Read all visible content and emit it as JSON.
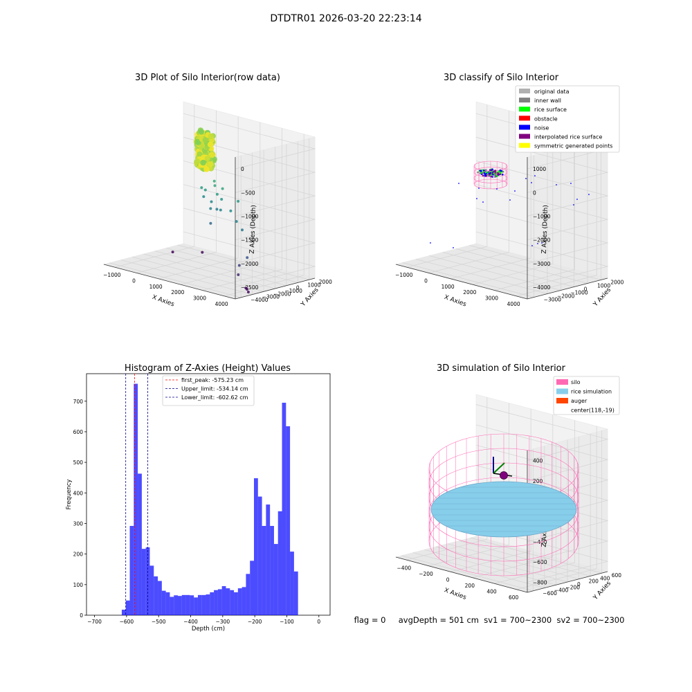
{
  "figure": {
    "suptitle": "DTDTR01 2026-03-20 22:23:14",
    "status_line": "flag = 0     avgDepth = 501 cm  sv1 = 700~2300  sv2 = 700~2300"
  },
  "chart_data": [
    {
      "type": "scatter",
      "title": "3D Plot of Silo Interior(row data)",
      "xlabel": "X Axies",
      "ylabel": "Y Axies",
      "zlabel": "Z Axies (Depth)",
      "x_ticks": [
        -1000,
        0,
        1000,
        2000,
        3000,
        4000
      ],
      "y_ticks": [
        2000,
        1000,
        0,
        -1000,
        -2000,
        -3000,
        -4000
      ],
      "z_ticks": [
        0,
        -500,
        -1000,
        -1500,
        -2000,
        -2500
      ],
      "xlim": [
        -1500,
        4500
      ],
      "ylim": [
        -4500,
        2500
      ],
      "zlim": [
        -3000,
        200
      ],
      "colormap": "viridis",
      "cluster": {
        "x_range": [
          400,
          1000
        ],
        "y_range": [
          -300,
          300
        ],
        "z_range": [
          -800,
          0
        ]
      },
      "points": [
        {
          "x": 1080,
          "y": 100,
          "z": -1050
        },
        {
          "x": 700,
          "y": 50,
          "z": -1300
        },
        {
          "x": 600,
          "y": -100,
          "z": -1250
        },
        {
          "x": 1250,
          "y": -200,
          "z": -1100
        },
        {
          "x": 1500,
          "y": 0,
          "z": -1150
        },
        {
          "x": 1600,
          "y": -300,
          "z": -1350
        },
        {
          "x": 1450,
          "y": -400,
          "z": -1250
        },
        {
          "x": 900,
          "y": 200,
          "z": -1550
        },
        {
          "x": 1200,
          "y": -500,
          "z": -1600
        },
        {
          "x": 1700,
          "y": -600,
          "z": -1550
        },
        {
          "x": 2300,
          "y": -900,
          "z": -1450
        },
        {
          "x": 2300,
          "y": -200,
          "z": -1300
        },
        {
          "x": 2700,
          "y": -1200,
          "z": -1600
        },
        {
          "x": 3100,
          "y": -1500,
          "z": -1700
        },
        {
          "x": 3700,
          "y": -2300,
          "z": -2150
        },
        {
          "x": 3300,
          "y": -2200,
          "z": -2400
        },
        {
          "x": 3300,
          "y": -2300,
          "z": -2600
        },
        {
          "x": 500,
          "y": 300,
          "z": -1500
        },
        {
          "x": 1300,
          "y": -700,
          "z": -1900
        },
        {
          "x": 1100,
          "y": 300,
          "z": -1700
        },
        {
          "x": 0,
          "y": 1200,
          "z": -2900
        },
        {
          "x": -900,
          "y": 300,
          "z": -2950
        },
        {
          "x": 3800,
          "y": -2400,
          "z": -2900
        },
        {
          "x": 3600,
          "y": -2100,
          "z": -2900
        },
        {
          "x": 3500,
          "y": -2000,
          "z": -2900
        }
      ]
    },
    {
      "type": "scatter",
      "title": "3D classify of Silo Interior",
      "xlabel": "X Axies",
      "ylabel": "Y Axies",
      "zlabel": "Z Axies (Depth)",
      "x_ticks": [
        -1000,
        0,
        1000,
        2000,
        3000,
        4000
      ],
      "y_ticks": [
        2000,
        1000,
        0,
        -1000,
        -2000,
        -3000
      ],
      "z_ticks": [
        1000,
        0,
        -1000,
        -2000,
        -3000,
        -4000
      ],
      "legend": [
        {
          "label": "original data",
          "color": "#b0b0b0"
        },
        {
          "label": "inner wall",
          "color": "#808080"
        },
        {
          "label": "rice surface",
          "color": "#00ff00"
        },
        {
          "label": "obstacle",
          "color": "#ff0000"
        },
        {
          "label": "noise",
          "color": "#0000ff"
        },
        {
          "label": "interpolated rice surface",
          "color": "#800080"
        },
        {
          "label": "symmetric generated points",
          "color": "#ffff00"
        }
      ],
      "legend_position": "top-right"
    },
    {
      "type": "bar",
      "title": "Histogram of Z-Axies (Height) Values",
      "xlabel": "Depth (cm)",
      "ylabel": "Frequency",
      "xlim": [
        -725,
        35
      ],
      "ylim": [
        0,
        790
      ],
      "x_ticks": [
        -700,
        -600,
        -500,
        -400,
        -300,
        -200,
        -100,
        0
      ],
      "y_ticks": [
        0,
        100,
        200,
        300,
        400,
        500,
        600,
        700
      ],
      "bar_color": "#0000ff",
      "bins_start": -615,
      "bin_width": 12.5,
      "values": [
        18,
        48,
        292,
        757,
        463,
        217,
        222,
        162,
        127,
        112,
        80,
        75,
        60,
        65,
        63,
        66,
        66,
        65,
        58,
        66,
        66,
        68,
        75,
        82,
        85,
        95,
        88,
        82,
        75,
        88,
        92,
        135,
        178,
        448,
        388,
        292,
        362,
        292,
        233,
        340,
        695,
        618,
        208,
        143
      ],
      "lines": [
        {
          "label": "first_peak: -575.23 cm",
          "value": -575.23,
          "color": "#ff0000"
        },
        {
          "label": "Upper_limit: -534.14 cm",
          "value": -534.14,
          "color": "#00008b"
        },
        {
          "label": "Lower_limit: -602.62 cm",
          "value": -602.62,
          "color": "#00008b"
        }
      ],
      "legend_position": "top-center"
    },
    {
      "type": "scatter",
      "title": "3D simulation of Silo Interior",
      "xlabel": "X Axies",
      "ylabel": "Y Axies",
      "zlabel": "Z Axies (Depth)",
      "x_ticks": [
        -400,
        -200,
        0,
        200,
        400,
        600
      ],
      "y_ticks": [
        600,
        400,
        200,
        0,
        -200,
        -400,
        -600
      ],
      "z_ticks": [
        400,
        200,
        0,
        -200,
        -400,
        -600,
        -800
      ],
      "legend": [
        {
          "label": "silo",
          "color": "#ff69b4"
        },
        {
          "label": "rice simulation",
          "color": "#87ceeb"
        },
        {
          "label": "auger",
          "color": "#ff4500"
        },
        {
          "label": "center(118,-19)",
          "color": ""
        }
      ],
      "legend_position": "top-right"
    }
  ]
}
